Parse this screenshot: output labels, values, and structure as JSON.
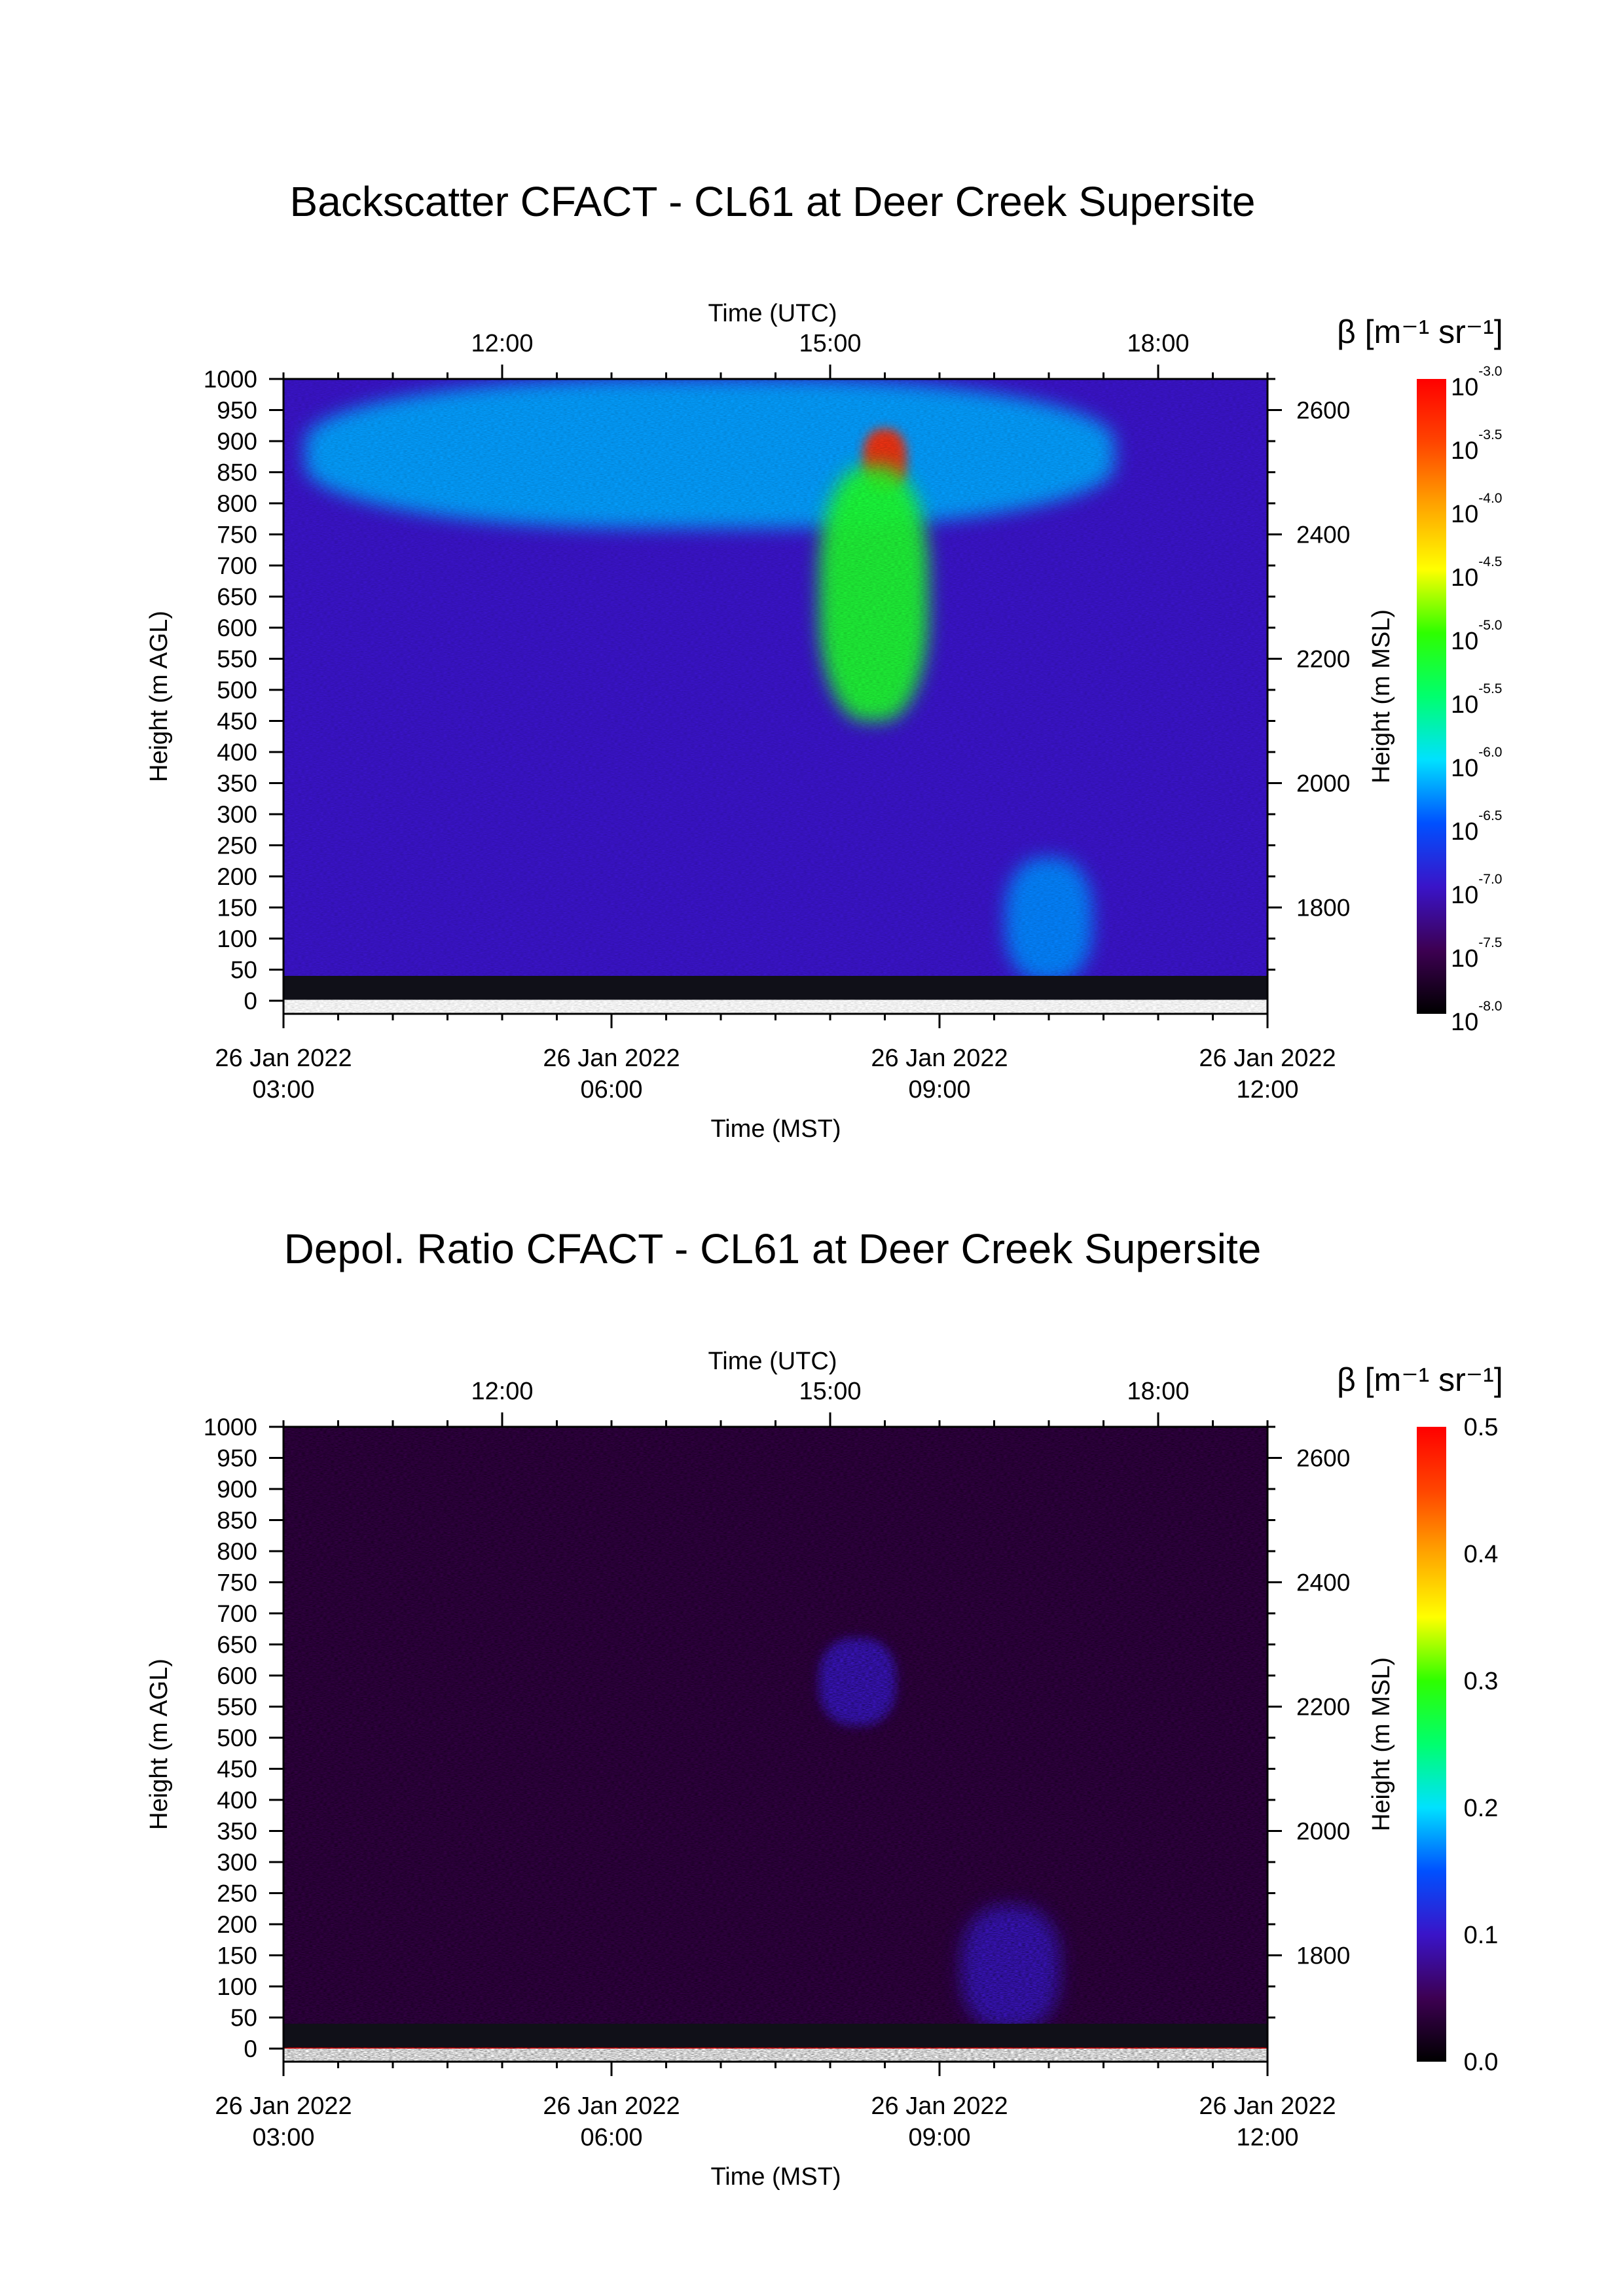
{
  "chart_data": [
    {
      "type": "heatmap",
      "title": "Backscatter CFACT - CL61 at Deer Creek Supersite",
      "xlabel": "Time (MST)",
      "xlabel_top": "Time (UTC)",
      "ylabel": "Height (m AGL)",
      "ylabel_right": "Height (m MSL)",
      "x_ticks_mst": [
        {
          "date": "26 Jan 2022",
          "time": "03:00",
          "hour": 3
        },
        {
          "date": "26 Jan 2022",
          "time": "06:00",
          "hour": 6
        },
        {
          "date": "26 Jan 2022",
          "time": "09:00",
          "hour": 9
        },
        {
          "date": "26 Jan 2022",
          "time": "12:00",
          "hour": 12
        }
      ],
      "x_ticks_utc": [
        {
          "label": "12:00",
          "hour_mst": 5
        },
        {
          "label": "15:00",
          "hour_mst": 8
        },
        {
          "label": "18:00",
          "hour_mst": 11
        }
      ],
      "xlim_mst_hours": [
        3,
        12
      ],
      "y_ticks": [
        "0",
        "50",
        "100",
        "150",
        "200",
        "250",
        "300",
        "350",
        "400",
        "450",
        "500",
        "550",
        "600",
        "650",
        "700",
        "750",
        "800",
        "850",
        "900",
        "950",
        "1000"
      ],
      "ylim": [
        0,
        1000
      ],
      "y_right_ticks": [
        "1800",
        "2000",
        "2200",
        "2400",
        "2600"
      ],
      "y_right_offset": 1650,
      "colorbar": {
        "label": "β [m⁻¹ sr⁻¹]",
        "scale": "log",
        "base": "10",
        "exponents": [
          "-3.0",
          "-3.5",
          "-4.0",
          "-4.5",
          "-5.0",
          "-5.5",
          "-6.0",
          "-6.5",
          "-7.0",
          "-7.5",
          "-8.0"
        ],
        "range": [
          -8.0,
          -3.0
        ]
      },
      "features": [
        {
          "hour": [
            3,
            12
          ],
          "height": [
            40,
            1000
          ],
          "log_beta": -7.0
        },
        {
          "hour": [
            3.2,
            10.6
          ],
          "height": [
            760,
            1000
          ],
          "log_beta": -6.2
        },
        {
          "hour": [
            8.3,
            8.7
          ],
          "height": [
            820,
            920
          ],
          "log_beta": -3.3
        },
        {
          "hour": [
            7.9,
            8.9
          ],
          "height": [
            450,
            860
          ],
          "log_beta": -5.2
        },
        {
          "hour": [
            9.6,
            10.4
          ],
          "height": [
            30,
            230
          ],
          "log_beta": -6.3
        }
      ]
    },
    {
      "type": "heatmap",
      "title": "Depol. Ratio CFACT - CL61 at Deer Creek Supersite",
      "xlabel": "Time (MST)",
      "xlabel_top": "Time (UTC)",
      "ylabel": "Height (m AGL)",
      "ylabel_right": "Height (m MSL)",
      "x_ticks_mst": [
        {
          "date": "26 Jan 2022",
          "time": "03:00",
          "hour": 3
        },
        {
          "date": "26 Jan 2022",
          "time": "06:00",
          "hour": 6
        },
        {
          "date": "26 Jan 2022",
          "time": "09:00",
          "hour": 9
        },
        {
          "date": "26 Jan 2022",
          "time": "12:00",
          "hour": 12
        }
      ],
      "x_ticks_utc": [
        {
          "label": "12:00",
          "hour_mst": 5
        },
        {
          "label": "15:00",
          "hour_mst": 8
        },
        {
          "label": "18:00",
          "hour_mst": 11
        }
      ],
      "xlim_mst_hours": [
        3,
        12
      ],
      "y_ticks": [
        "0",
        "50",
        "100",
        "150",
        "200",
        "250",
        "300",
        "350",
        "400",
        "450",
        "500",
        "550",
        "600",
        "650",
        "700",
        "750",
        "800",
        "850",
        "900",
        "950",
        "1000"
      ],
      "ylim": [
        0,
        1000
      ],
      "y_right_ticks": [
        "1800",
        "2000",
        "2200",
        "2400",
        "2600"
      ],
      "y_right_offset": 1650,
      "colorbar": {
        "label": "β [m⁻¹ sr⁻¹]",
        "scale": "linear",
        "ticks": [
          "0.0",
          "0.1",
          "0.2",
          "0.3",
          "0.4",
          "0.5"
        ],
        "range": [
          0.0,
          0.5
        ]
      },
      "features": [
        {
          "hour": [
            3,
            12
          ],
          "height": [
            40,
            1000
          ],
          "value": 0.04
        },
        {
          "hour": [
            7.9,
            8.6
          ],
          "height": [
            520,
            660
          ],
          "value": 0.1
        },
        {
          "hour": [
            9.2,
            10.1
          ],
          "height": [
            30,
            230
          ],
          "value": 0.1
        },
        {
          "hour": [
            3,
            12
          ],
          "height": [
            0,
            20
          ],
          "value": 0.5
        }
      ]
    }
  ]
}
